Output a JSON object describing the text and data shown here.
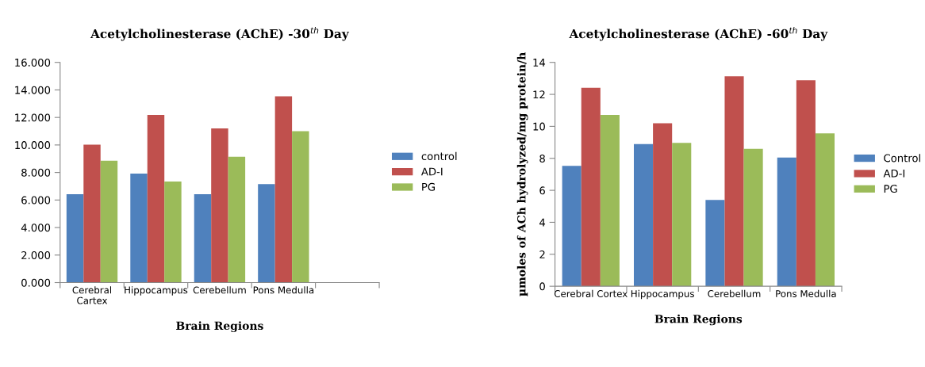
{
  "chart_data": [
    {
      "type": "bar",
      "title": "Acetylcholinesterase (AChE) -30$^{th}$ Day",
      "xlabel": "Brain Regions",
      "categories": [
        "Cerebral\nCartex",
        "Hippocampus",
        "Cerebellum",
        "Pons Medulla",
        null
      ],
      "series": [
        {
          "name": "control",
          "color": "#4f81bd",
          "values": [
            6.42,
            7.92,
            6.42,
            7.16,
            null
          ]
        },
        {
          "name": "AD-I",
          "color": "#c0504d",
          "values": [
            10.02,
            12.18,
            11.2,
            13.54,
            null
          ]
        },
        {
          "name": "PG",
          "color": "#9bbb59",
          "values": [
            8.85,
            7.35,
            9.14,
            11.0,
            null
          ]
        }
      ],
      "ylim": [
        0,
        16
      ],
      "yticks": [
        {
          "value": 0,
          "label": "0.000"
        },
        {
          "value": 2,
          "label": "2.000"
        },
        {
          "value": 4,
          "label": "4.000"
        },
        {
          "value": 6,
          "label": "6.000"
        },
        {
          "value": 8,
          "label": "8.000"
        },
        {
          "value": 10,
          "label": "10.000"
        },
        {
          "value": 12,
          "label": "12.000"
        },
        {
          "value": 14,
          "label": "14.000"
        },
        {
          "value": 16,
          "label": "16.000"
        }
      ],
      "grid": false,
      "legend": "right"
    },
    {
      "type": "bar",
      "title": "Acetylcholinesterase (AChE) -60$^{th}$ Day",
      "xlabel": "Brain Regions",
      "ylabel": "µmoles of ACh hydrolyzed/mg protein/h",
      "categories": [
        "Cerebral Cortex",
        "Hippocampus",
        "Cerebellum",
        "Pons Medulla"
      ],
      "series": [
        {
          "name": "Control",
          "color": "#4f81bd",
          "values": [
            7.53,
            8.89,
            5.4,
            8.05
          ]
        },
        {
          "name": "AD-I",
          "color": "#c0504d",
          "values": [
            12.41,
            10.19,
            13.13,
            12.88
          ]
        },
        {
          "name": "PG",
          "color": "#9bbb59",
          "values": [
            10.71,
            8.97,
            8.6,
            9.56
          ]
        }
      ],
      "ylim": [
        0,
        14
      ],
      "yticks": [
        0,
        2,
        4,
        6,
        8,
        10,
        12,
        14
      ],
      "grid": false,
      "legend": "right"
    }
  ]
}
